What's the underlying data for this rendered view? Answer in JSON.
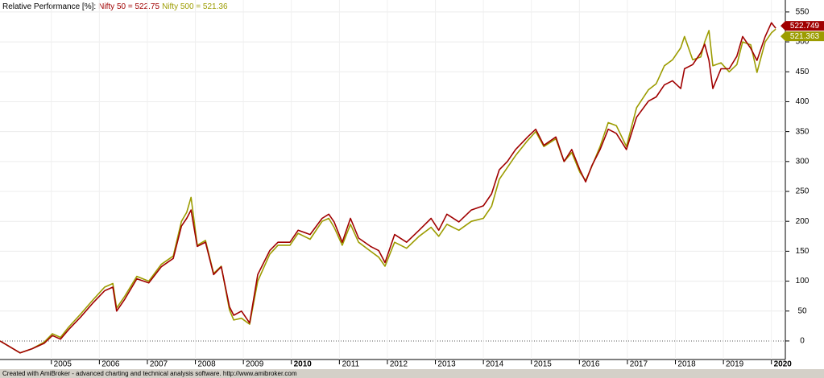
{
  "chart_data": {
    "type": "line",
    "title": "Relative Performance [%]:",
    "footer": "Created with AmiBroker - advanced charting and technical analysis software. http://www.amibroker.com",
    "x": [
      2003.93,
      2004.1,
      2004.35,
      2004.6,
      2004.85,
      2005.02,
      2005.19,
      2005.36,
      2005.61,
      2005.86,
      2006.11,
      2006.28,
      2006.36,
      2006.53,
      2006.78,
      2007.03,
      2007.29,
      2007.54,
      2007.71,
      2007.82,
      2007.91,
      2008.04,
      2008.21,
      2008.38,
      2008.54,
      2008.71,
      2008.8,
      2008.96,
      2009.13,
      2009.3,
      2009.55,
      2009.72,
      2009.97,
      2010.14,
      2010.39,
      2010.64,
      2010.78,
      2010.89,
      2011.06,
      2011.23,
      2011.4,
      2011.65,
      2011.82,
      2011.95,
      2012.15,
      2012.4,
      2012.66,
      2012.91,
      2013.07,
      2013.24,
      2013.49,
      2013.75,
      2014.0,
      2014.17,
      2014.33,
      2014.5,
      2014.67,
      2014.92,
      2015.09,
      2015.26,
      2015.51,
      2015.68,
      2015.84,
      2016.01,
      2016.13,
      2016.26,
      2016.43,
      2016.6,
      2016.77,
      2016.98,
      2017.19,
      2017.44,
      2017.6,
      2017.77,
      2017.94,
      2018.11,
      2018.19,
      2018.36,
      2018.53,
      2018.61,
      2018.7,
      2018.78,
      2018.95,
      2019.12,
      2019.28,
      2019.4,
      2019.57,
      2019.7,
      2019.87,
      2020.0,
      2020.09
    ],
    "series": [
      {
        "name": "Nifty 500 = 521.36",
        "color": "#9c9c00",
        "last_label": "521.363",
        "values": [
          0,
          -8,
          -20,
          -13,
          -2,
          12,
          6,
          23,
          45,
          68,
          90,
          96,
          55,
          75,
          108,
          100,
          128,
          142,
          200,
          215,
          240,
          160,
          168,
          113,
          125,
          52,
          35,
          38,
          28,
          100,
          145,
          160,
          160,
          180,
          170,
          200,
          205,
          190,
          160,
          195,
          165,
          150,
          140,
          125,
          165,
          155,
          175,
          190,
          175,
          195,
          185,
          200,
          205,
          225,
          270,
          290,
          310,
          335,
          350,
          325,
          338,
          300,
          315,
          282,
          268,
          292,
          325,
          365,
          360,
          325,
          390,
          420,
          430,
          460,
          470,
          490,
          509,
          470,
          475,
          500,
          519,
          460,
          465,
          450,
          462,
          500,
          495,
          449,
          500,
          515,
          521.36
        ]
      },
      {
        "name": "Nifty 50 = 522.75",
        "color": "#a00000",
        "last_label": "522.749",
        "values": [
          0,
          -8,
          -20,
          -13,
          -4,
          9,
          3,
          19,
          40,
          63,
          84,
          90,
          50,
          70,
          104,
          97,
          124,
          138,
          192,
          205,
          219,
          158,
          165,
          111,
          124,
          57,
          43,
          50,
          30,
          111,
          151,
          165,
          165,
          185,
          178,
          205,
          212,
          199,
          165,
          205,
          172,
          158,
          151,
          131,
          178,
          165,
          185,
          205,
          185,
          212,
          199,
          219,
          226,
          246,
          286,
          300,
          320,
          341,
          354,
          327,
          341,
          300,
          320,
          286,
          266,
          293,
          320,
          354,
          347,
          320,
          374,
          401,
          408,
          428,
          435,
          422,
          455,
          462,
          482,
          496,
          469,
          422,
          455,
          455,
          476,
          509,
          489,
          469,
          509,
          532,
          522.75
        ]
      }
    ],
    "xlim": [
      2003.93,
      2020.29
    ],
    "xticks": [
      2005,
      2006,
      2007,
      2008,
      2009,
      2010,
      2011,
      2012,
      2013,
      2014,
      2015,
      2016,
      2017,
      2018,
      2019,
      2020
    ],
    "ylim": [
      -31,
      570
    ],
    "yticks": [
      0,
      50,
      100,
      150,
      200,
      250,
      300,
      350,
      400,
      450,
      500,
      550
    ],
    "grid": true
  }
}
